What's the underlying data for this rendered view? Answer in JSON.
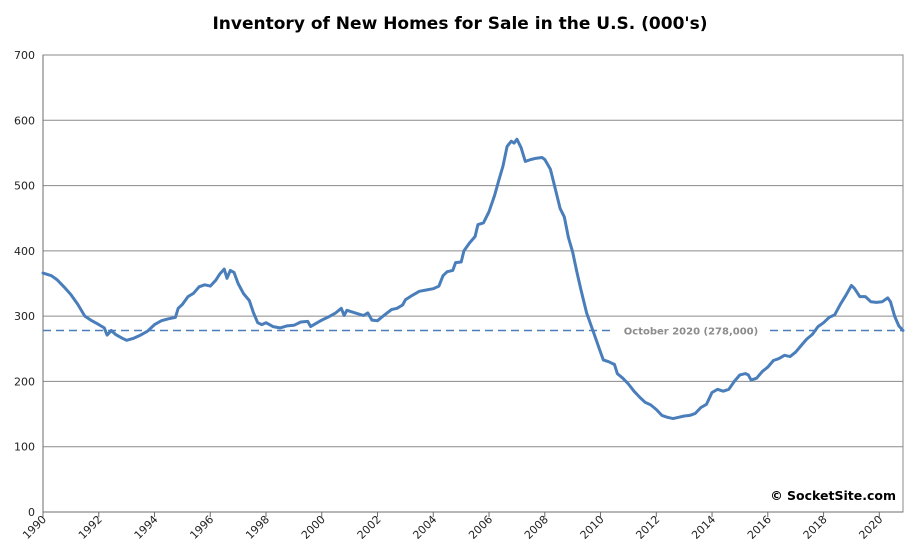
{
  "chart_data": {
    "type": "line",
    "title": "Inventory of New Homes for Sale in the U.S. (000's)",
    "xlabel": "",
    "ylabel": "",
    "xlim": [
      1990,
      2020.85
    ],
    "ylim": [
      0,
      700
    ],
    "y_ticks": [
      0,
      100,
      200,
      300,
      400,
      500,
      600,
      700
    ],
    "x_ticks": [
      "1990",
      "1992",
      "1994",
      "1996",
      "1998",
      "2000",
      "2002",
      "2004",
      "2006",
      "2008",
      "2010",
      "2012",
      "2014",
      "2016",
      "2018",
      "2020"
    ],
    "grid": "horizontal",
    "series": [
      {
        "name": "",
        "color": "#4a7ebb",
        "points": [
          [
            1990.0,
            366
          ],
          [
            1990.3,
            362
          ],
          [
            1990.5,
            356
          ],
          [
            1990.75,
            345
          ],
          [
            1991.0,
            333
          ],
          [
            1991.25,
            318
          ],
          [
            1991.5,
            300
          ],
          [
            1991.75,
            293
          ],
          [
            1992.0,
            287
          ],
          [
            1992.2,
            282
          ],
          [
            1992.3,
            271
          ],
          [
            1992.45,
            278
          ],
          [
            1992.6,
            272
          ],
          [
            1992.85,
            266
          ],
          [
            1993.0,
            263
          ],
          [
            1993.25,
            266
          ],
          [
            1993.5,
            271
          ],
          [
            1993.75,
            277
          ],
          [
            1994.0,
            287
          ],
          [
            1994.25,
            293
          ],
          [
            1994.5,
            296
          ],
          [
            1994.75,
            298
          ],
          [
            1994.85,
            312
          ],
          [
            1995.0,
            318
          ],
          [
            1995.2,
            330
          ],
          [
            1995.4,
            335
          ],
          [
            1995.6,
            345
          ],
          [
            1995.8,
            348
          ],
          [
            1996.0,
            346
          ],
          [
            1996.2,
            355
          ],
          [
            1996.35,
            365
          ],
          [
            1996.5,
            372
          ],
          [
            1996.6,
            358
          ],
          [
            1996.72,
            370
          ],
          [
            1996.85,
            367
          ],
          [
            1997.0,
            350
          ],
          [
            1997.2,
            334
          ],
          [
            1997.4,
            324
          ],
          [
            1997.55,
            305
          ],
          [
            1997.7,
            290
          ],
          [
            1997.85,
            287
          ],
          [
            1998.0,
            290
          ],
          [
            1998.25,
            284
          ],
          [
            1998.5,
            282
          ],
          [
            1998.75,
            285
          ],
          [
            1999.0,
            286
          ],
          [
            1999.25,
            291
          ],
          [
            1999.5,
            292
          ],
          [
            1999.6,
            284
          ],
          [
            1999.8,
            289
          ],
          [
            2000.0,
            294
          ],
          [
            2000.25,
            299
          ],
          [
            2000.5,
            305
          ],
          [
            2000.7,
            312
          ],
          [
            2000.8,
            301
          ],
          [
            2000.9,
            309
          ],
          [
            2001.2,
            305
          ],
          [
            2001.5,
            301
          ],
          [
            2001.65,
            305
          ],
          [
            2001.8,
            294
          ],
          [
            2002.0,
            293
          ],
          [
            2002.2,
            300
          ],
          [
            2002.5,
            310
          ],
          [
            2002.7,
            312
          ],
          [
            2002.9,
            317
          ],
          [
            2003.0,
            325
          ],
          [
            2003.25,
            332
          ],
          [
            2003.5,
            338
          ],
          [
            2003.75,
            340
          ],
          [
            2004.0,
            342
          ],
          [
            2004.2,
            346
          ],
          [
            2004.35,
            362
          ],
          [
            2004.5,
            368
          ],
          [
            2004.7,
            370
          ],
          [
            2004.8,
            382
          ],
          [
            2005.0,
            383
          ],
          [
            2005.1,
            400
          ],
          [
            2005.3,
            412
          ],
          [
            2005.5,
            422
          ],
          [
            2005.6,
            440
          ],
          [
            2005.8,
            443
          ],
          [
            2006.0,
            460
          ],
          [
            2006.2,
            485
          ],
          [
            2006.35,
            508
          ],
          [
            2006.5,
            530
          ],
          [
            2006.65,
            560
          ],
          [
            2006.8,
            568
          ],
          [
            2006.9,
            565
          ],
          [
            2007.0,
            571
          ],
          [
            2007.15,
            558
          ],
          [
            2007.3,
            537
          ],
          [
            2007.5,
            540
          ],
          [
            2007.7,
            542
          ],
          [
            2007.9,
            543
          ],
          [
            2008.0,
            540
          ],
          [
            2008.2,
            525
          ],
          [
            2008.35,
            500
          ],
          [
            2008.55,
            465
          ],
          [
            2008.7,
            452
          ],
          [
            2008.85,
            420
          ],
          [
            2009.0,
            398
          ],
          [
            2009.15,
            368
          ],
          [
            2009.3,
            340
          ],
          [
            2009.5,
            305
          ],
          [
            2009.75,
            275
          ],
          [
            2010.0,
            245
          ],
          [
            2010.1,
            233
          ],
          [
            2010.3,
            230
          ],
          [
            2010.5,
            226
          ],
          [
            2010.6,
            212
          ],
          [
            2010.8,
            205
          ],
          [
            2011.0,
            196
          ],
          [
            2011.2,
            185
          ],
          [
            2011.4,
            176
          ],
          [
            2011.6,
            168
          ],
          [
            2011.8,
            164
          ],
          [
            2012.0,
            157
          ],
          [
            2012.2,
            148
          ],
          [
            2012.4,
            145
          ],
          [
            2012.6,
            143
          ],
          [
            2012.8,
            145
          ],
          [
            2013.0,
            147
          ],
          [
            2013.2,
            148
          ],
          [
            2013.4,
            151
          ],
          [
            2013.6,
            160
          ],
          [
            2013.8,
            165
          ],
          [
            2014.0,
            183
          ],
          [
            2014.2,
            188
          ],
          [
            2014.4,
            185
          ],
          [
            2014.6,
            188
          ],
          [
            2014.8,
            200
          ],
          [
            2015.0,
            210
          ],
          [
            2015.2,
            212
          ],
          [
            2015.3,
            210
          ],
          [
            2015.4,
            202
          ],
          [
            2015.6,
            205
          ],
          [
            2015.8,
            215
          ],
          [
            2016.0,
            222
          ],
          [
            2016.2,
            232
          ],
          [
            2016.4,
            235
          ],
          [
            2016.6,
            240
          ],
          [
            2016.8,
            238
          ],
          [
            2017.0,
            245
          ],
          [
            2017.2,
            255
          ],
          [
            2017.4,
            265
          ],
          [
            2017.6,
            272
          ],
          [
            2017.8,
            284
          ],
          [
            2018.0,
            290
          ],
          [
            2018.2,
            298
          ],
          [
            2018.4,
            302
          ],
          [
            2018.6,
            318
          ],
          [
            2018.8,
            332
          ],
          [
            2019.0,
            347
          ],
          [
            2019.1,
            343
          ],
          [
            2019.3,
            330
          ],
          [
            2019.5,
            330
          ],
          [
            2019.7,
            322
          ],
          [
            2019.9,
            321
          ],
          [
            2020.1,
            322
          ],
          [
            2020.3,
            328
          ],
          [
            2020.4,
            322
          ],
          [
            2020.55,
            300
          ],
          [
            2020.7,
            285
          ],
          [
            2020.85,
            278
          ]
        ]
      }
    ],
    "reference_line": {
      "value": 278,
      "label": "October 2020 (278,000)",
      "color": "#4a7ebb",
      "style": "dashed"
    },
    "annotation": "© SocketSite.com"
  }
}
